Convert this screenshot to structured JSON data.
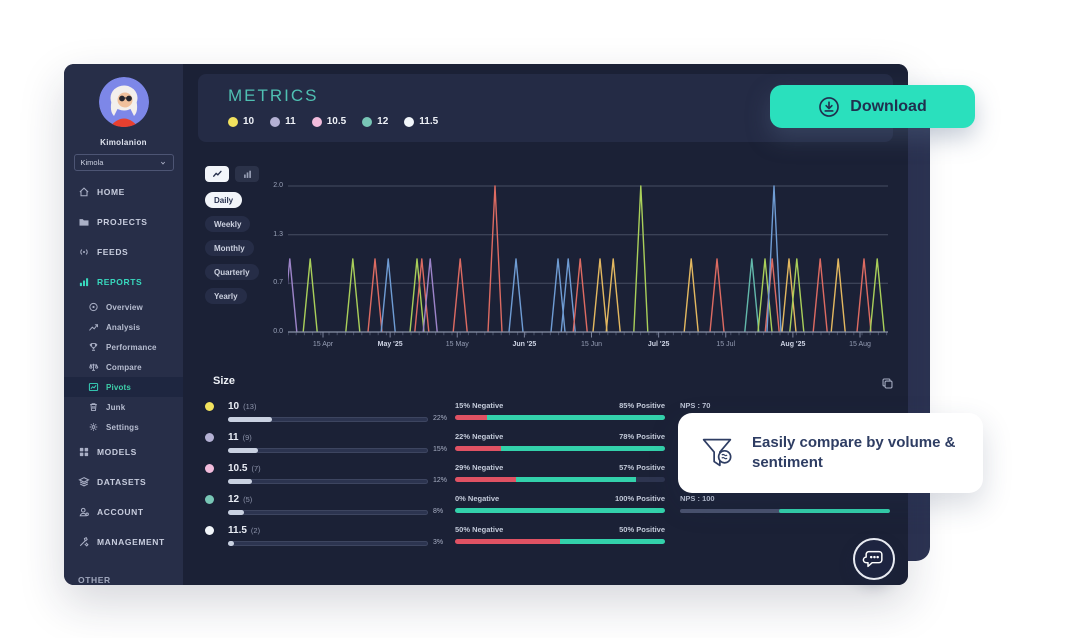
{
  "sidebar": {
    "user_name": "Kimolanion",
    "workspace": "Kimola",
    "items": [
      {
        "label": "HOME",
        "icon": "home-icon",
        "active": false
      },
      {
        "label": "PROJECTS",
        "icon": "folder-icon",
        "active": false
      },
      {
        "label": "FEEDS",
        "icon": "feeds-icon",
        "active": false
      },
      {
        "label": "REPORTS",
        "icon": "bar-chart-icon",
        "active": true,
        "children": [
          {
            "label": "Overview",
            "icon": "target-icon",
            "active": false
          },
          {
            "label": "Analysis",
            "icon": "trend-icon",
            "active": false
          },
          {
            "label": "Performance",
            "icon": "trophy-icon",
            "active": false
          },
          {
            "label": "Compare",
            "icon": "scale-icon",
            "active": false
          },
          {
            "label": "Pivots",
            "icon": "line-chart-icon",
            "active": true
          },
          {
            "label": "Junk",
            "icon": "trash-icon",
            "active": false
          },
          {
            "label": "Settings",
            "icon": "gear-icon",
            "active": false
          }
        ]
      },
      {
        "label": "MODELS",
        "icon": "grid-icon",
        "active": false
      },
      {
        "label": "DATASETS",
        "icon": "layers-icon",
        "active": false
      },
      {
        "label": "ACCOUNT",
        "icon": "user-icon",
        "active": false
      },
      {
        "label": "MANAGEMENT",
        "icon": "tools-icon",
        "active": false
      },
      {
        "label": "OTHER",
        "icon": null,
        "active": false
      }
    ]
  },
  "header": {
    "title": "METRICS",
    "download_label": "Download",
    "legend": [
      {
        "label": "10",
        "color": "#f2e25e"
      },
      {
        "label": "11",
        "color": "#b4b1d4"
      },
      {
        "label": "10.5",
        "color": "#f2bcdc"
      },
      {
        "label": "12",
        "color": "#78c6b6"
      },
      {
        "label": "11.5",
        "color": "#f2f6fa"
      }
    ]
  },
  "controls": {
    "chart_type_toggles": [
      {
        "name": "line-chart-toggle",
        "active": true
      },
      {
        "name": "bar-chart-toggle",
        "active": false
      }
    ],
    "periods": [
      {
        "label": "Daily",
        "active": true
      },
      {
        "label": "Weekly",
        "active": false
      },
      {
        "label": "Monthly",
        "active": false
      },
      {
        "label": "Quarterly",
        "active": false
      },
      {
        "label": "Yearly",
        "active": false
      }
    ]
  },
  "chart_data": {
    "type": "line",
    "title": "",
    "xlabel": "",
    "ylabel": "",
    "ylim": [
      0,
      2
    ],
    "grid": true,
    "y_ticks": [
      {
        "label": "2.0",
        "value": 2
      },
      {
        "label": "1.3",
        "value": 1.333
      },
      {
        "label": "0.7",
        "value": 0.667
      },
      {
        "label": "0.0",
        "value": 0
      }
    ],
    "x_axis_labels": [
      "15 Apr",
      "May '25",
      "15 May",
      "Jun '25",
      "15 Jun",
      "Jul '25",
      "15 Jul",
      "Aug '25",
      "15 Aug"
    ],
    "x_axis_bold": [
      "May '25",
      "Jun '25",
      "Jul '25",
      "Aug '25"
    ],
    "series_note": "daily spike events; x is fraction of full Apr-Aug axis, value is spike peak",
    "spikes": [
      {
        "x": 0.003,
        "value": 1,
        "color": "#9d84c9"
      },
      {
        "x": 0.037,
        "value": 1,
        "color": "#a9cf5a"
      },
      {
        "x": 0.108,
        "value": 1,
        "color": "#a9cf5a"
      },
      {
        "x": 0.145,
        "value": 1,
        "color": "#dd6b62"
      },
      {
        "x": 0.167,
        "value": 1,
        "color": "#6f9cd4"
      },
      {
        "x": 0.215,
        "value": 1,
        "color": "#a9cf5a"
      },
      {
        "x": 0.223,
        "value": 1,
        "color": "#dd6b62"
      },
      {
        "x": 0.237,
        "value": 1,
        "color": "#9d84c9"
      },
      {
        "x": 0.287,
        "value": 1,
        "color": "#dd6b62"
      },
      {
        "x": 0.345,
        "value": 2,
        "color": "#dd6b62"
      },
      {
        "x": 0.38,
        "value": 1,
        "color": "#6f9cd4"
      },
      {
        "x": 0.45,
        "value": 1,
        "color": "#6f9cd4"
      },
      {
        "x": 0.467,
        "value": 1,
        "color": "#6f9cd4"
      },
      {
        "x": 0.487,
        "value": 1,
        "color": "#dd6b62"
      },
      {
        "x": 0.52,
        "value": 1,
        "color": "#e3b860"
      },
      {
        "x": 0.542,
        "value": 1,
        "color": "#e3b860"
      },
      {
        "x": 0.588,
        "value": 2,
        "color": "#a9cf5a"
      },
      {
        "x": 0.672,
        "value": 1,
        "color": "#e3b860"
      },
      {
        "x": 0.715,
        "value": 1,
        "color": "#dd6b62"
      },
      {
        "x": 0.773,
        "value": 1,
        "color": "#62b8ab"
      },
      {
        "x": 0.795,
        "value": 1,
        "color": "#a9cf5a"
      },
      {
        "x": 0.807,
        "value": 1,
        "color": "#dd6b62"
      },
      {
        "x": 0.81,
        "value": 2,
        "color": "#6f9cd4"
      },
      {
        "x": 0.835,
        "value": 1,
        "color": "#e3b860"
      },
      {
        "x": 0.848,
        "value": 1,
        "color": "#a9cf5a"
      },
      {
        "x": 0.887,
        "value": 1,
        "color": "#dd6b62"
      },
      {
        "x": 0.917,
        "value": 1,
        "color": "#e3b860"
      },
      {
        "x": 0.96,
        "value": 1,
        "color": "#dd6b62"
      },
      {
        "x": 0.982,
        "value": 1,
        "color": "#a9cf5a"
      }
    ]
  },
  "size_section": {
    "title": "Size",
    "rows": [
      {
        "color": "#f2e25e",
        "label": "10",
        "count": "(13)",
        "volume_pct": 22,
        "volume_label": "22%",
        "negative": "15% Negative",
        "positive": "85% Positive",
        "neg_pct": 15,
        "pos_pct": 85,
        "nps_label": "NPS : 70",
        "nps_value": 70,
        "nps_bar": null
      },
      {
        "color": "#b4b1d4",
        "label": "11",
        "count": "(9)",
        "volume_pct": 15,
        "volume_label": "15%",
        "negative": "22% Negative",
        "positive": "78% Positive",
        "neg_pct": 22,
        "pos_pct": 78,
        "nps_label": null,
        "nps_value": null,
        "nps_bar": null
      },
      {
        "color": "#f2bcdc",
        "label": "10.5",
        "count": "(7)",
        "volume_pct": 12,
        "volume_label": "12%",
        "negative": "29% Negative",
        "positive": "57% Positive",
        "neg_pct": 29,
        "pos_pct": 57,
        "nps_label": null,
        "nps_value": null,
        "nps_bar": null
      },
      {
        "color": "#78c6b6",
        "label": "12",
        "count": "(5)",
        "volume_pct": 8,
        "volume_label": "8%",
        "negative": "0% Negative",
        "positive": "100% Positive",
        "neg_pct": 0,
        "pos_pct": 100,
        "nps_label": "NPS : 100",
        "nps_value": 100,
        "nps_bar": {
          "start_pct": 47,
          "end_pct": 100
        }
      },
      {
        "color": "#f2f6fa",
        "label": "11.5",
        "count": "(2)",
        "volume_pct": 3,
        "volume_label": "3%",
        "negative": "50% Negative",
        "positive": "50% Positive",
        "neg_pct": 50,
        "pos_pct": 50,
        "nps_label": null,
        "nps_value": null,
        "nps_bar": null
      }
    ]
  },
  "tooltip": {
    "text": "Easily compare by volume & sentiment",
    "icon": "funnel-icon"
  },
  "colors": {
    "accent_teal": "#2ae0bd",
    "title_teal": "#4fc0b2",
    "sentiment_negative": "#e05263",
    "sentiment_positive": "#33d1ab",
    "panel_bg": "#1b2136",
    "sidebar_bg": "#272e48",
    "card_bg": "#242b45"
  }
}
